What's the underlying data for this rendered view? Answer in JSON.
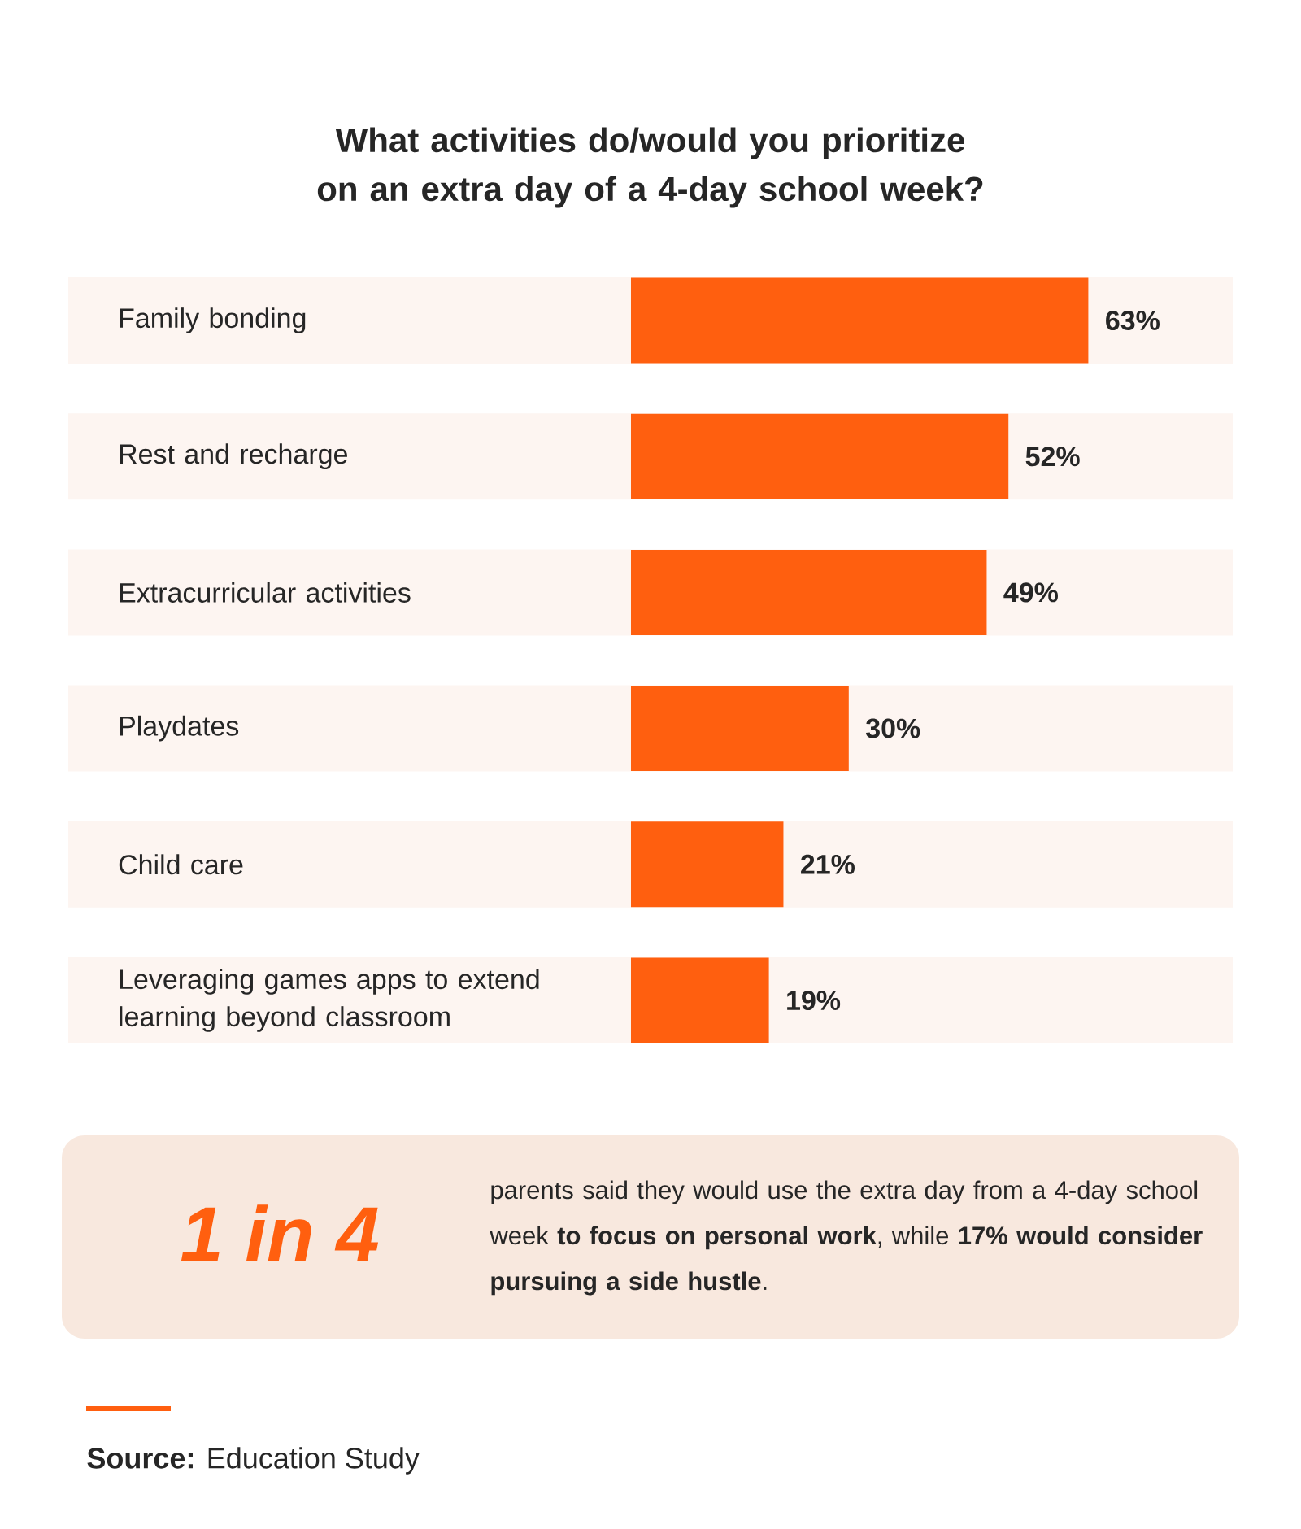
{
  "chart_data": {
    "type": "bar",
    "orientation": "horizontal",
    "title": "What activities do/would you prioritize on an extra day of a 4-day school week?",
    "categories": [
      "Family bonding",
      "Rest and recharge",
      "Extracurricular activities",
      "Playdates",
      "Child care",
      "Leveraging games apps to extend learning beyond classroom"
    ],
    "values": [
      63,
      52,
      49,
      30,
      21,
      19
    ],
    "value_labels": [
      "63%",
      "52%",
      "49%",
      "30%",
      "21%",
      "19%"
    ],
    "color": "#ff5f0f",
    "annotations": [
      "1 in 4",
      "parents said they would use the extra day from a 4-day school week **to focus on personal work**, while **17% would consider pursuing a side hustle**.",
      "**Source:** Education Study"
    ]
  }
}
